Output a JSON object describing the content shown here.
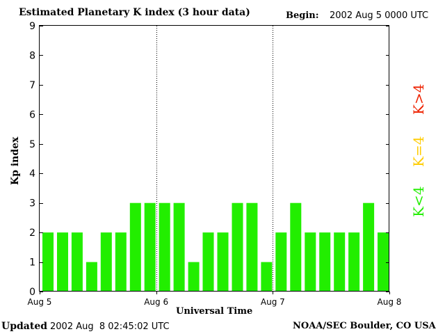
{
  "header": {
    "title": "Estimated Planetary K index (3 hour data)",
    "begin_label": "Begin:",
    "begin_value": "2002 Aug 5 0000 UTC"
  },
  "footer": {
    "updated_label": "Updated",
    "updated_value": "2002 Aug  8 02:45:02 UTC",
    "credit": "NOAA/SEC Boulder, CO USA"
  },
  "legend": {
    "items": [
      {
        "label": "K<4",
        "color": "#22ee00"
      },
      {
        "label": "K=4",
        "color": "#ffcc00"
      },
      {
        "label": "K>4",
        "color": "#ee2200"
      }
    ]
  },
  "chart_data": {
    "type": "bar",
    "title": "Estimated Planetary K index (3 hour data)",
    "xlabel": "Universal Time",
    "ylabel": "Kp index",
    "ylim": [
      0,
      9
    ],
    "yticks": [
      0,
      1,
      2,
      3,
      4,
      5,
      6,
      7,
      8,
      9
    ],
    "xlim_hours": [
      0,
      72
    ],
    "xtick_labels": [
      "Aug 5",
      "Aug 6",
      "Aug 7",
      "Aug 8"
    ],
    "bar_interval_hours": 3,
    "day_dividers": true,
    "values": [
      2,
      2,
      2,
      1,
      2,
      2,
      3,
      3,
      3,
      3,
      1,
      2,
      2,
      3,
      3,
      1,
      2,
      3,
      2,
      2,
      2,
      2,
      3,
      2
    ],
    "bar_color": "#22ee00"
  }
}
